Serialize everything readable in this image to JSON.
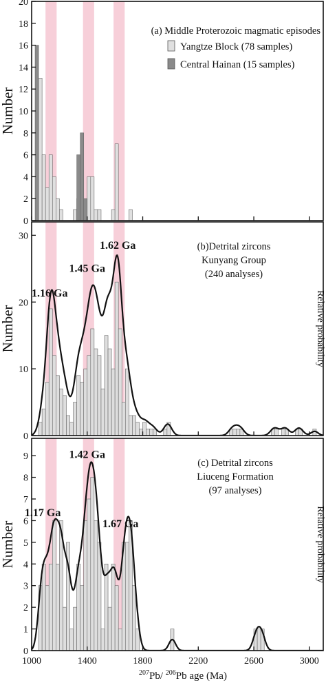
{
  "chart_data": {
    "type": "bar",
    "shared_x": {
      "xlabel_parts": [
        "207",
        "Pb/ ",
        "206",
        "Pb age (Ma)"
      ],
      "xlim": [
        1000,
        3100
      ],
      "ticks": [
        1000,
        1400,
        1800,
        2200,
        2600,
        3000
      ],
      "tick_labels": [
        "1000",
        "1400",
        "1800",
        "2200",
        "2600",
        "3000"
      ]
    },
    "bands": [
      [
        1100,
        1180
      ],
      [
        1370,
        1450
      ],
      [
        1590,
        1670
      ]
    ],
    "colors": {
      "band": "#f7cfd9",
      "bar_yangtze": "#e0e0e0",
      "bar_hainan": "#8a8a8a",
      "bar_detrital": "#dedede",
      "line": "#111111"
    },
    "bin_width": 25,
    "panels": [
      {
        "ylabel": "Number",
        "ylim": [
          0,
          20
        ],
        "yticks": [
          0,
          2,
          4,
          6,
          8,
          10,
          12,
          14,
          16,
          18,
          20
        ],
        "title": "(a) Middle Proterozoic magmatic episodes",
        "legend": [
          {
            "label": "Yangtze Block (78 samples)",
            "swatch": "bar_yangtze"
          },
          {
            "label": "Central Hainan (15 samples)",
            "swatch": "bar_hainan"
          }
        ],
        "series": [
          {
            "name": "Yangtze Block (78 samples)",
            "x": [
              1050,
              1075,
              1100,
              1125,
              1150,
              1175,
              1200,
              1300,
              1325,
              1350,
              1375,
              1400,
              1425,
              1450,
              1475,
              1575,
              1600,
              1700
            ],
            "values": [
              13,
              6,
              3,
              6,
              4,
              2,
              1,
              1,
              2,
              5,
              1,
              4,
              4,
              1,
              1,
              1,
              7,
              1
            ]
          },
          {
            "name": "Central Hainan (15 samples)",
            "x": [
              1025,
              1325,
              1350,
              1375
            ],
            "values": [
              16,
              6,
              8,
              2
            ]
          }
        ]
      },
      {
        "ylabel": "Number",
        "right_label": "Relative probability",
        "ylim": [
          0,
          32
        ],
        "yticks": [
          0,
          10,
          20,
          30
        ],
        "title_lines": [
          "(b)Detrital zircons",
          "Kunyang Group",
          "(240 analyses)"
        ],
        "peak_labels": [
          {
            "text": "1.16 Ga",
            "x": 1130,
            "y": 20.8
          },
          {
            "text": "1.45 Ga",
            "x": 1400,
            "y": 24.5
          },
          {
            "text": "1.62 Ga",
            "x": 1620,
            "y": 28
          }
        ],
        "series": [
          {
            "name": "",
            "x": [
              1050,
              1075,
              1100,
              1125,
              1150,
              1175,
              1200,
              1225,
              1250,
              1275,
              1300,
              1325,
              1350,
              1375,
              1400,
              1425,
              1450,
              1475,
              1500,
              1525,
              1550,
              1575,
              1600,
              1625,
              1650,
              1675,
              1700,
              1725,
              1750,
              1775,
              1800,
              1825,
              1850,
              1875,
              1950,
              1975,
              2425,
              2450,
              2475,
              2500,
              2725,
              2750,
              2800,
              2825,
              2900,
              2925,
              3025
            ],
            "values": [
              2,
              4,
              8,
              19,
              12,
              9,
              7,
              6,
              3,
              2,
              5,
              9,
              8,
              10,
              12,
              16,
              13,
              12,
              7,
              15,
              13,
              10,
              23,
              16,
              5,
              10,
              3,
              3,
              2,
              1,
              2,
              1,
              1,
              1,
              1,
              2,
              1,
              1,
              1,
              1,
              1,
              1,
              1,
              1,
              1,
              1,
              1
            ]
          }
        ]
      },
      {
        "ylabel": "Number",
        "right_label": "Relative probability",
        "ylim": [
          0,
          9.8
        ],
        "yticks": [
          0,
          1,
          2,
          3,
          4,
          5,
          6,
          7,
          8,
          9
        ],
        "title_lines": [
          "(c) Detrital zircons",
          "Liuceng Formation",
          "(97 analyses)"
        ],
        "peak_labels": [
          {
            "text": "1.17 Ga",
            "x": 1080,
            "y": 6.2
          },
          {
            "text": "1.42 Ga",
            "x": 1400,
            "y": 8.9
          },
          {
            "text": "1.67 Ga",
            "x": 1640,
            "y": 5.7
          }
        ],
        "series": [
          {
            "name": "",
            "x": [
              1050,
              1075,
              1100,
              1125,
              1150,
              1175,
              1200,
              1225,
              1250,
              1275,
              1300,
              1325,
              1350,
              1375,
              1400,
              1425,
              1450,
              1475,
              1500,
              1525,
              1550,
              1575,
              1600,
              1625,
              1650,
              1675,
              1700,
              1725,
              1750,
              2000,
              2600,
              2625,
              2650
            ],
            "values": [
              3,
              4,
              3,
              4,
              6,
              4,
              6,
              2,
              5,
              1,
              2,
              4,
              3,
              6,
              7,
              8,
              6,
              5,
              1,
              4,
              2,
              4,
              3,
              1,
              5,
              5,
              6,
              3,
              1,
              1,
              1,
              1,
              1
            ]
          }
        ]
      }
    ]
  }
}
